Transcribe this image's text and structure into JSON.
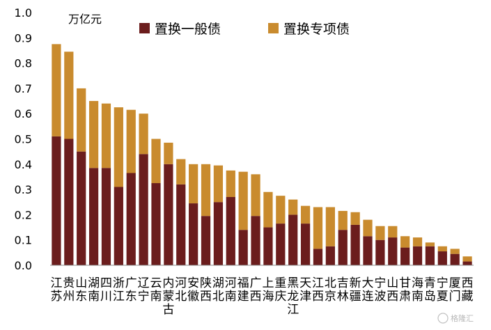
{
  "chart_data": {
    "type": "bar",
    "stacked": true,
    "unit_label": "万亿元",
    "ylim": [
      0,
      1.0
    ],
    "yticks": [
      "0.0",
      "0.1",
      "0.2",
      "0.3",
      "0.4",
      "0.5",
      "0.6",
      "0.7",
      "0.8",
      "0.9",
      "1.0"
    ],
    "categories": [
      "江苏",
      "贵州",
      "山东",
      "湖南",
      "四川",
      "浙江",
      "广东",
      "辽宁",
      "云南",
      "内蒙古",
      "河北",
      "安徽",
      "陕西",
      "湖北",
      "河南",
      "福建",
      "广西",
      "上海",
      "重庆",
      "黑龙江",
      "天津",
      "江西",
      "北京",
      "吉林",
      "新疆",
      "大连",
      "宁波",
      "山西",
      "甘肃",
      "海南",
      "青岛",
      "宁夏",
      "厦门",
      "西藏"
    ],
    "series": [
      {
        "name": "置换一般债",
        "color": "#6b1d1d",
        "values": [
          0.51,
          0.5,
          0.45,
          0.385,
          0.385,
          0.31,
          0.365,
          0.44,
          0.325,
          0.4,
          0.32,
          0.245,
          0.195,
          0.25,
          0.27,
          0.14,
          0.195,
          0.15,
          0.165,
          0.2,
          0.165,
          0.065,
          0.075,
          0.14,
          0.16,
          0.115,
          0.1,
          0.11,
          0.07,
          0.075,
          0.075,
          0.055,
          0.045,
          0.015
        ]
      },
      {
        "name": "置换专项债",
        "color": "#c98b2e",
        "values": [
          0.365,
          0.345,
          0.25,
          0.265,
          0.255,
          0.315,
          0.25,
          0.16,
          0.175,
          0.085,
          0.1,
          0.155,
          0.205,
          0.145,
          0.105,
          0.23,
          0.165,
          0.14,
          0.11,
          0.06,
          0.07,
          0.165,
          0.155,
          0.075,
          0.05,
          0.065,
          0.055,
          0.045,
          0.045,
          0.035,
          0.015,
          0.02,
          0.02,
          0.02
        ]
      }
    ],
    "legend_position": "top",
    "grid": false
  },
  "watermark": "格隆汇"
}
